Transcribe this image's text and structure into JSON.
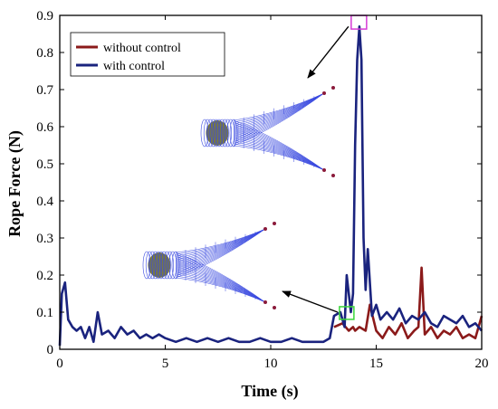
{
  "chart_data": {
    "type": "line",
    "title": "",
    "xlabel": "Time (s)",
    "ylabel": "Rope Force (N)",
    "xlim": [
      0,
      20
    ],
    "ylim": [
      0,
      0.9
    ],
    "xticks": [
      0,
      5,
      10,
      15,
      20
    ],
    "yticks": [
      0,
      0.1,
      0.2,
      0.3,
      0.4,
      0.5,
      0.6,
      0.7,
      0.8,
      0.9
    ],
    "x_tick_labels": [
      "0",
      "5",
      "10",
      "15",
      "20"
    ],
    "y_tick_labels": [
      "0",
      "0.1",
      "0.2",
      "0.3",
      "0.4",
      "0.5",
      "0.6",
      "0.7",
      "0.8",
      "0.9"
    ],
    "grid": false,
    "legend_position": "top-left",
    "series": [
      {
        "name": "without control",
        "color": "#8b1a1a",
        "x": [
          13.0,
          13.4,
          13.7,
          13.9,
          14.0,
          14.2,
          14.5,
          14.7,
          15.0,
          15.3,
          15.6,
          15.9,
          16.2,
          16.5,
          16.8,
          17.0,
          17.15,
          17.3,
          17.6,
          17.9,
          18.2,
          18.5,
          18.8,
          19.1,
          19.4,
          19.7,
          20.0
        ],
        "y": [
          0.06,
          0.07,
          0.05,
          0.06,
          0.05,
          0.06,
          0.05,
          0.12,
          0.05,
          0.03,
          0.06,
          0.04,
          0.07,
          0.03,
          0.05,
          0.06,
          0.22,
          0.04,
          0.06,
          0.03,
          0.05,
          0.04,
          0.06,
          0.03,
          0.04,
          0.03,
          0.09
        ]
      },
      {
        "name": "with control",
        "color": "#1a237e",
        "x": [
          0.0,
          0.1,
          0.25,
          0.4,
          0.6,
          0.8,
          1.0,
          1.2,
          1.4,
          1.6,
          1.8,
          2.0,
          2.3,
          2.6,
          2.9,
          3.2,
          3.5,
          3.8,
          4.1,
          4.4,
          4.7,
          5.0,
          5.5,
          6.0,
          6.5,
          7.0,
          7.5,
          8.0,
          8.5,
          9.0,
          9.5,
          10.0,
          10.5,
          11.0,
          11.5,
          12.0,
          12.5,
          12.8,
          13.0,
          13.3,
          13.5,
          13.6,
          13.8,
          13.9,
          14.0,
          14.1,
          14.2,
          14.3,
          14.4,
          14.5,
          14.6,
          14.8,
          15.0,
          15.2,
          15.5,
          15.8,
          16.1,
          16.4,
          16.7,
          17.0,
          17.3,
          17.6,
          17.9,
          18.2,
          18.5,
          18.8,
          19.1,
          19.4,
          19.7,
          20.0
        ],
        "y": [
          0.01,
          0.15,
          0.18,
          0.08,
          0.06,
          0.05,
          0.06,
          0.03,
          0.06,
          0.02,
          0.1,
          0.04,
          0.05,
          0.03,
          0.06,
          0.04,
          0.05,
          0.03,
          0.04,
          0.03,
          0.04,
          0.03,
          0.02,
          0.03,
          0.02,
          0.03,
          0.02,
          0.03,
          0.02,
          0.02,
          0.03,
          0.02,
          0.02,
          0.03,
          0.02,
          0.02,
          0.02,
          0.03,
          0.09,
          0.1,
          0.06,
          0.2,
          0.1,
          0.15,
          0.55,
          0.78,
          0.87,
          0.78,
          0.3,
          0.16,
          0.27,
          0.09,
          0.12,
          0.08,
          0.1,
          0.08,
          0.11,
          0.07,
          0.09,
          0.08,
          0.1,
          0.07,
          0.06,
          0.09,
          0.08,
          0.07,
          0.09,
          0.06,
          0.07,
          0.05
        ]
      }
    ]
  }
}
